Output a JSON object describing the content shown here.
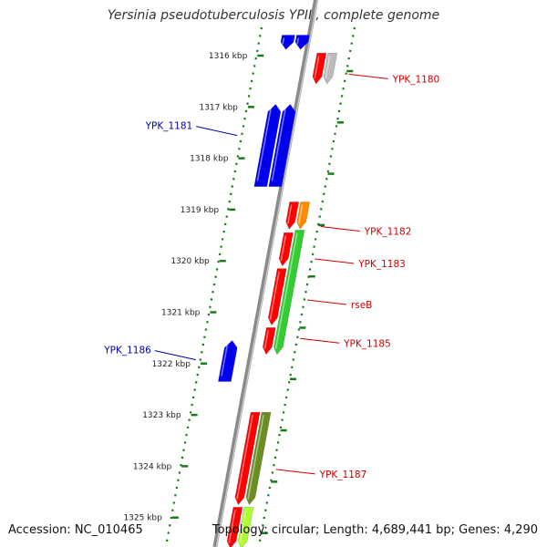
{
  "title": "Yersinia pseudotuberculosis YPIII, complete genome",
  "footer": {
    "accession": "Accession: NC_010465",
    "summary": "Topology: circular; Length: 4,689,441 bp; Genes: 4,290"
  },
  "colors": {
    "backbone": "#8a8a8a",
    "tick": "#1a7a1a",
    "label_plus": "#cc0000",
    "label_minus": "#0000aa",
    "red": "#ff0000",
    "blue": "#0000ee",
    "orange": "#ff8c00",
    "green": "#33cc33",
    "olive": "#6b8e23",
    "gray": "#bbbbbb",
    "lime": "#adff2f"
  },
  "ticks": [
    {
      "kbp": 1316,
      "label": "1316 kbp"
    },
    {
      "kbp": 1317,
      "label": "1317 kbp"
    },
    {
      "kbp": 1318,
      "label": "1318 kbp"
    },
    {
      "kbp": 1319,
      "label": "1319 kbp"
    },
    {
      "kbp": 1320,
      "label": "1320 kbp"
    },
    {
      "kbp": 1321,
      "label": "1321 kbp"
    },
    {
      "kbp": 1322,
      "label": "1322 kbp"
    },
    {
      "kbp": 1323,
      "label": "1323 kbp"
    },
    {
      "kbp": 1324,
      "label": "1324 kbp"
    },
    {
      "kbp": 1325,
      "label": "1325 kbp"
    }
  ],
  "genes": [
    {
      "strand": "outer",
      "lane": 0,
      "start": 1315.6,
      "end": 1315.88,
      "color": "blue",
      "dir": "down",
      "label": ""
    },
    {
      "strand": "outer",
      "lane": 1,
      "start": 1315.6,
      "end": 1315.88,
      "color": "blue",
      "dir": "down",
      "label": ""
    },
    {
      "strand": "inner",
      "lane": 0,
      "start": 1315.95,
      "end": 1316.55,
      "color": "red",
      "dir": "down",
      "label": "YPK_1180"
    },
    {
      "strand": "inner",
      "lane": 1,
      "start": 1315.95,
      "end": 1316.55,
      "color": "gray",
      "dir": "down",
      "label": ""
    },
    {
      "strand": "outer",
      "lane": 1,
      "start": 1316.95,
      "end": 1318.55,
      "color": "blue",
      "dir": "up",
      "label": "YPK_1181"
    },
    {
      "strand": "outer",
      "lane": 0,
      "start": 1316.95,
      "end": 1318.55,
      "color": "blue",
      "dir": "up",
      "label": ""
    },
    {
      "strand": "inner",
      "lane": 0,
      "start": 1318.85,
      "end": 1319.38,
      "color": "red",
      "dir": "down",
      "label": "YPK_1182"
    },
    {
      "strand": "inner",
      "lane": 1,
      "start": 1318.85,
      "end": 1319.38,
      "color": "orange",
      "dir": "down",
      "label": ""
    },
    {
      "strand": "inner",
      "lane": 0,
      "start": 1319.45,
      "end": 1320.1,
      "color": "red",
      "dir": "down",
      "label": "YPK_1183"
    },
    {
      "strand": "inner",
      "lane": 1,
      "start": 1319.4,
      "end": 1321.82,
      "color": "green",
      "dir": "down",
      "label": "rseB"
    },
    {
      "strand": "inner",
      "lane": 0,
      "start": 1320.15,
      "end": 1321.25,
      "color": "red",
      "dir": "down",
      "label": ""
    },
    {
      "strand": "inner",
      "lane": 0,
      "start": 1321.3,
      "end": 1321.82,
      "color": "red",
      "dir": "down",
      "label": "YPK_1185"
    },
    {
      "strand": "outer",
      "lane": 0,
      "start": 1321.55,
      "end": 1322.35,
      "color": "blue",
      "dir": "up",
      "label": "YPK_1186"
    },
    {
      "strand": "inner",
      "lane": 0,
      "start": 1322.95,
      "end": 1324.75,
      "color": "red",
      "dir": "down",
      "label": "YPK_1187"
    },
    {
      "strand": "inner",
      "lane": 1,
      "start": 1322.95,
      "end": 1324.75,
      "color": "olive",
      "dir": "down",
      "label": ""
    },
    {
      "strand": "inner",
      "lane": 0,
      "start": 1324.8,
      "end": 1325.6,
      "color": "red",
      "dir": "down",
      "label": ""
    },
    {
      "strand": "inner",
      "lane": 1,
      "start": 1324.8,
      "end": 1325.6,
      "color": "lime",
      "dir": "down",
      "label": ""
    }
  ],
  "labels": [
    {
      "text": "YPK_1180",
      "side": "right",
      "kbp": 1316.45,
      "color": "label_plus"
    },
    {
      "text": "YPK_1181",
      "side": "left",
      "kbp": 1317.45,
      "color": "label_minus"
    },
    {
      "text": "YPK_1182",
      "side": "right",
      "kbp": 1319.42,
      "color": "label_plus"
    },
    {
      "text": "YPK_1183",
      "side": "right",
      "kbp": 1320.05,
      "color": "label_plus"
    },
    {
      "text": "rseB",
      "side": "right",
      "kbp": 1320.85,
      "color": "label_plus"
    },
    {
      "text": "YPK_1185",
      "side": "right",
      "kbp": 1321.6,
      "color": "label_plus"
    },
    {
      "text": "YPK_1186",
      "side": "left",
      "kbp": 1321.82,
      "color": "label_minus"
    },
    {
      "text": "YPK_1187",
      "side": "right",
      "kbp": 1324.15,
      "color": "label_plus"
    }
  ]
}
